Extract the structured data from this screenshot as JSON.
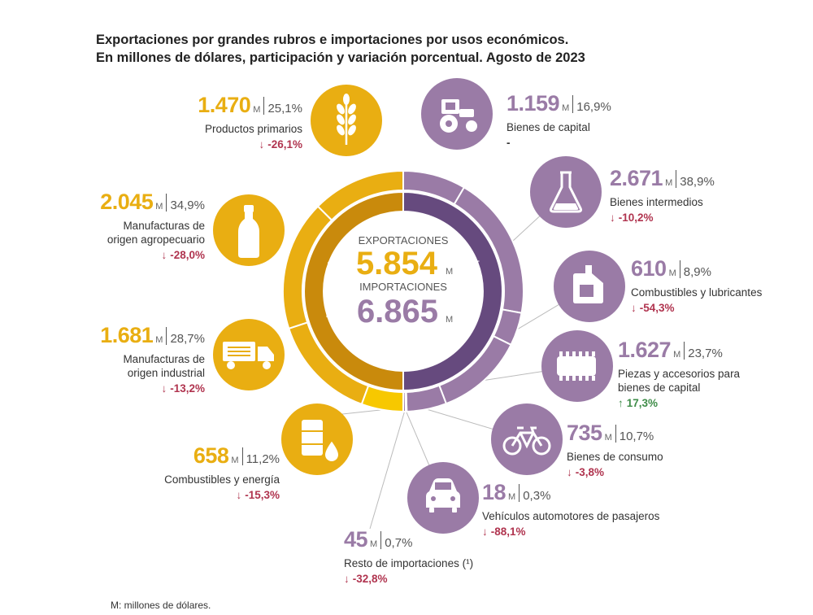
{
  "title": {
    "line1": "Exportaciones por grandes rubros e importaciones por usos económicos.",
    "line2": "En millones de dólares, participación y variación porcentual. Agosto de 2023"
  },
  "colors": {
    "exports": "#E9AE12",
    "exports_dark": "#C98A0C",
    "imports": "#9A7BA6",
    "imports_dark": "#664A7E",
    "down": "#B0344F",
    "up": "#3E8C48"
  },
  "center": {
    "exp_label": "EXPORTACIONES",
    "exp_value": "5.854",
    "exp_unit": "M",
    "imp_label": "IMPORTACIONES",
    "imp_value": "6.865",
    "imp_unit": "M",
    "ring_left": "Exportaciones",
    "ring_right": "Importaciones"
  },
  "chart_data": {
    "type": "donut",
    "title": "Exportaciones por grandes rubros e importaciones por usos económicos. Agosto de 2023",
    "unit": "millones de dólares",
    "exports_total": 5854,
    "imports_total": 6865,
    "exports": [
      {
        "name": "Productos primarios",
        "value": 1470,
        "share": "25,1%",
        "change": "-26,1%",
        "icon": "wheat-icon"
      },
      {
        "name": "Manufacturas de origen agropecuario",
        "value": 2045,
        "share": "34,9%",
        "change": "-28,0%",
        "icon": "bottle-icon"
      },
      {
        "name": "Manufacturas de origen industrial",
        "value": 1681,
        "share": "28,7%",
        "change": "-13,2%",
        "icon": "truck-icon"
      },
      {
        "name": "Combustibles y energía",
        "value": 658,
        "share": "11,2%",
        "change": "-15,3%",
        "icon": "oil-barrel-icon"
      }
    ],
    "imports": [
      {
        "name": "Bienes de capital",
        "value": 1159,
        "share": "16,9%",
        "change": "-",
        "icon": "tractor-icon"
      },
      {
        "name": "Bienes intermedios",
        "value": 2671,
        "share": "38,9%",
        "change": "-10,2%",
        "icon": "flask-icon"
      },
      {
        "name": "Combustibles y lubricantes",
        "value": 610,
        "share": "8,9%",
        "change": "-54,3%",
        "icon": "jerrycan-icon"
      },
      {
        "name": "Piezas y accesorios para bienes de capital",
        "value": 1627,
        "share": "23,7%",
        "change": "17,3%",
        "icon": "chip-icon"
      },
      {
        "name": "Bienes de consumo",
        "value": 735,
        "share": "10,7%",
        "change": "-3,8%",
        "icon": "bicycle-icon"
      },
      {
        "name": "Vehículos automotores de pasajeros",
        "value": 18,
        "share": "0,3%",
        "change": "-88,1%",
        "icon": "car-icon"
      },
      {
        "name": "Resto de importaciones",
        "value": 45,
        "share": "0,7%",
        "change": "-32,8%",
        "icon": ""
      }
    ]
  },
  "labels": {
    "e0": {
      "value": "1.470",
      "unit": "M",
      "share": "25,1%",
      "name1": "Productos primarios",
      "name2": "",
      "arrow": "↓",
      "change": "-26,1%"
    },
    "e1": {
      "value": "2.045",
      "unit": "M",
      "share": "34,9%",
      "name1": "Manufacturas de",
      "name2": "origen agropecuario",
      "arrow": "↓",
      "change": "-28,0%"
    },
    "e2": {
      "value": "1.681",
      "unit": "M",
      "share": "28,7%",
      "name1": "Manufacturas de",
      "name2": "origen industrial",
      "arrow": "↓",
      "change": "-13,2%"
    },
    "e3": {
      "value": "658",
      "unit": "M",
      "share": "11,2%",
      "name1": "Combustibles y energía",
      "name2": "",
      "arrow": "↓",
      "change": "-15,3%"
    },
    "i0": {
      "value": "1.159",
      "unit": "M",
      "share": "16,9%",
      "name1": "Bienes de capital",
      "name2": "",
      "arrow": "",
      "change": "-"
    },
    "i1": {
      "value": "2.671",
      "unit": "M",
      "share": "38,9%",
      "name1": "Bienes intermedios",
      "name2": "",
      "arrow": "↓",
      "change": "-10,2%"
    },
    "i2": {
      "value": "610",
      "unit": "M",
      "share": "8,9%",
      "name1": "Combustibles y lubricantes",
      "name2": "",
      "arrow": "↓",
      "change": "-54,3%"
    },
    "i3": {
      "value": "1.627",
      "unit": "M",
      "share": "23,7%",
      "name1": "Piezas y accesorios para",
      "name2": "bienes de capital",
      "arrow": "↑",
      "change": "17,3%"
    },
    "i4": {
      "value": "735",
      "unit": "M",
      "share": "10,7%",
      "name1": "Bienes de consumo",
      "name2": "",
      "arrow": "↓",
      "change": "-3,8%"
    },
    "i5": {
      "value": "18",
      "unit": "M",
      "share": "0,3%",
      "name1": "Vehículos automotores de pasajeros",
      "name2": "",
      "arrow": "↓",
      "change": "-88,1%"
    },
    "i6": {
      "value": "45",
      "unit": "M",
      "share": "0,7%",
      "name1": "Resto de importaciones (¹)",
      "name2": "",
      "arrow": "↓",
      "change": "-32,8%"
    }
  },
  "footnote": "M: millones de dólares."
}
